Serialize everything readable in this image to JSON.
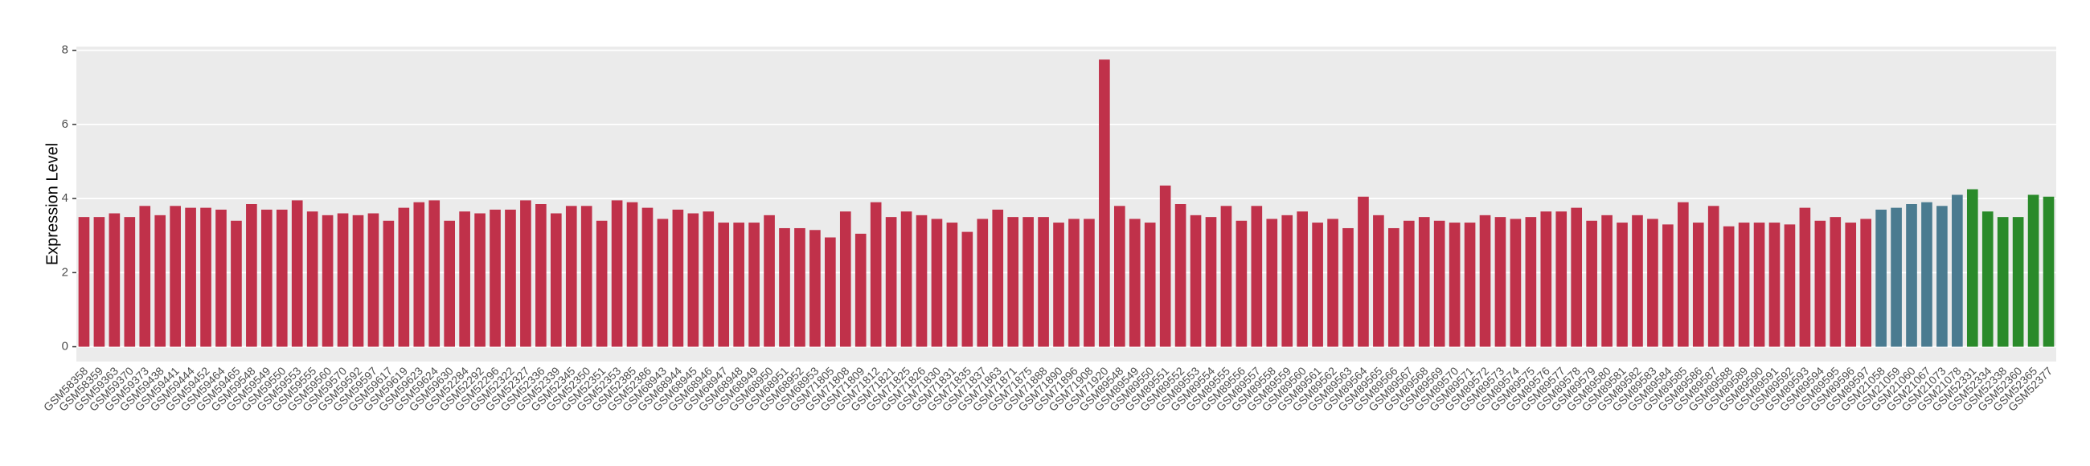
{
  "chart_data": {
    "type": "bar",
    "y_label": "Expression Level",
    "categories": [
      "GSM58358",
      "GSM58359",
      "GSM59363",
      "GSM59370",
      "GSM59373",
      "GSM59438",
      "GSM59441",
      "GSM59444",
      "GSM59452",
      "GSM59464",
      "GSM59465",
      "GSM59548",
      "GSM59549",
      "GSM59550",
      "GSM59553",
      "GSM59555",
      "GSM59560",
      "GSM59570",
      "GSM59592",
      "GSM59597",
      "GSM59617",
      "GSM59619",
      "GSM59623",
      "GSM59624",
      "GSM59630",
      "GSM52284",
      "GSM52292",
      "GSM52296",
      "GSM52322",
      "GSM52327",
      "GSM52336",
      "GSM52339",
      "GSM52345",
      "GSM52350",
      "GSM52351",
      "GSM52353",
      "GSM52385",
      "GSM52386",
      "GSM68943",
      "GSM68944",
      "GSM68945",
      "GSM68946",
      "GSM68947",
      "GSM68948",
      "GSM68949",
      "GSM68950",
      "GSM68951",
      "GSM68952",
      "GSM68953",
      "GSM71805",
      "GSM71808",
      "GSM71809",
      "GSM71812",
      "GSM71821",
      "GSM71825",
      "GSM71826",
      "GSM71830",
      "GSM71831",
      "GSM71835",
      "GSM71837",
      "GSM71863",
      "GSM71871",
      "GSM71875",
      "GSM71888",
      "GSM71890",
      "GSM71896",
      "GSM71908",
      "GSM71920",
      "GSM89548",
      "GSM89549",
      "GSM89550",
      "GSM89551",
      "GSM89552",
      "GSM89553",
      "GSM89554",
      "GSM89555",
      "GSM89556",
      "GSM89557",
      "GSM89558",
      "GSM89559",
      "GSM89560",
      "GSM89561",
      "GSM89562",
      "GSM89563",
      "GSM89564",
      "GSM89565",
      "GSM89566",
      "GSM89567",
      "GSM89568",
      "GSM89569",
      "GSM89570",
      "GSM89571",
      "GSM89572",
      "GSM89573",
      "GSM89574",
      "GSM89575",
      "GSM89576",
      "GSM89577",
      "GSM89578",
      "GSM89579",
      "GSM89580",
      "GSM89581",
      "GSM89582",
      "GSM89583",
      "GSM89584",
      "GSM89585",
      "GSM89586",
      "GSM89587",
      "GSM89588",
      "GSM89589",
      "GSM89590",
      "GSM89591",
      "GSM89592",
      "GSM89593",
      "GSM89594",
      "GSM89595",
      "GSM89596",
      "GSM89597",
      "GSM21058",
      "GSM21059",
      "GSM21060",
      "GSM21067",
      "GSM21073",
      "GSM21078",
      "GSM52331",
      "GSM52334",
      "GSM52338",
      "GSM52360",
      "GSM52365",
      "GSM52377"
    ],
    "values": [
      3.5,
      3.5,
      3.6,
      3.5,
      3.8,
      3.55,
      3.8,
      3.75,
      3.75,
      3.7,
      3.4,
      3.85,
      3.7,
      3.7,
      3.95,
      3.65,
      3.55,
      3.6,
      3.55,
      3.6,
      3.4,
      3.75,
      3.9,
      3.95,
      3.4,
      3.65,
      3.6,
      3.7,
      3.7,
      3.95,
      3.85,
      3.6,
      3.8,
      3.8,
      3.4,
      3.95,
      3.9,
      3.75,
      3.45,
      3.7,
      3.6,
      3.65,
      3.35,
      3.35,
      3.35,
      3.55,
      3.2,
      3.2,
      3.15,
      2.95,
      3.65,
      3.05,
      3.9,
      3.5,
      3.65,
      3.55,
      3.45,
      3.35,
      3.1,
      3.45,
      3.7,
      3.5,
      3.5,
      3.5,
      3.35,
      3.45,
      3.45,
      7.75,
      3.8,
      3.45,
      3.35,
      4.35,
      3.85,
      3.55,
      3.5,
      3.8,
      3.4,
      3.8,
      3.45,
      3.55,
      3.65,
      3.35,
      3.45,
      3.2,
      4.05,
      3.55,
      3.2,
      3.4,
      3.5,
      3.4,
      3.35,
      3.35,
      3.55,
      3.5,
      3.45,
      3.5,
      3.65,
      3.65,
      3.75,
      3.4,
      3.55,
      3.35,
      3.55,
      3.45,
      3.3,
      3.9,
      3.35,
      3.8,
      3.25,
      3.35,
      3.35,
      3.35,
      3.3,
      3.75,
      3.4,
      3.5,
      3.35,
      3.45,
      3.7,
      3.75,
      3.85,
      3.9,
      3.8,
      4.1,
      4.25,
      3.65,
      3.5,
      3.5,
      4.1,
      4.05
    ],
    "colors": [
      "#c0314a",
      "#c0314a",
      "#c0314a",
      "#c0314a",
      "#c0314a",
      "#c0314a",
      "#c0314a",
      "#c0314a",
      "#c0314a",
      "#c0314a",
      "#c0314a",
      "#c0314a",
      "#c0314a",
      "#c0314a",
      "#c0314a",
      "#c0314a",
      "#c0314a",
      "#c0314a",
      "#c0314a",
      "#c0314a",
      "#c0314a",
      "#c0314a",
      "#c0314a",
      "#c0314a",
      "#c0314a",
      "#c0314a",
      "#c0314a",
      "#c0314a",
      "#c0314a",
      "#c0314a",
      "#c0314a",
      "#c0314a",
      "#c0314a",
      "#c0314a",
      "#c0314a",
      "#c0314a",
      "#c0314a",
      "#c0314a",
      "#c0314a",
      "#c0314a",
      "#c0314a",
      "#c0314a",
      "#c0314a",
      "#c0314a",
      "#c0314a",
      "#c0314a",
      "#c0314a",
      "#c0314a",
      "#c0314a",
      "#c0314a",
      "#c0314a",
      "#c0314a",
      "#c0314a",
      "#c0314a",
      "#c0314a",
      "#c0314a",
      "#c0314a",
      "#c0314a",
      "#c0314a",
      "#c0314a",
      "#c0314a",
      "#c0314a",
      "#c0314a",
      "#c0314a",
      "#c0314a",
      "#c0314a",
      "#c0314a",
      "#c0314a",
      "#c0314a",
      "#c0314a",
      "#c0314a",
      "#c0314a",
      "#c0314a",
      "#c0314a",
      "#c0314a",
      "#c0314a",
      "#c0314a",
      "#c0314a",
      "#c0314a",
      "#c0314a",
      "#c0314a",
      "#c0314a",
      "#c0314a",
      "#c0314a",
      "#c0314a",
      "#c0314a",
      "#c0314a",
      "#c0314a",
      "#c0314a",
      "#c0314a",
      "#c0314a",
      "#c0314a",
      "#c0314a",
      "#c0314a",
      "#c0314a",
      "#c0314a",
      "#c0314a",
      "#c0314a",
      "#c0314a",
      "#c0314a",
      "#c0314a",
      "#c0314a",
      "#c0314a",
      "#c0314a",
      "#c0314a",
      "#c0314a",
      "#c0314a",
      "#c0314a",
      "#c0314a",
      "#c0314a",
      "#c0314a",
      "#c0314a",
      "#c0314a",
      "#c0314a",
      "#c0314a",
      "#c0314a",
      "#c0314a",
      "#c0314a",
      "#4a7b90",
      "#4a7b90",
      "#4a7b90",
      "#4a7b90",
      "#4a7b90",
      "#4a7b90",
      "#2a8a2a",
      "#2a8a2a",
      "#2a8a2a",
      "#2a8a2a",
      "#2a8a2a",
      "#2a8a2a"
    ],
    "ylim": [
      -0.4,
      8.1
    ],
    "yticks": [
      0,
      2,
      4,
      6,
      8
    ],
    "grid": true
  }
}
